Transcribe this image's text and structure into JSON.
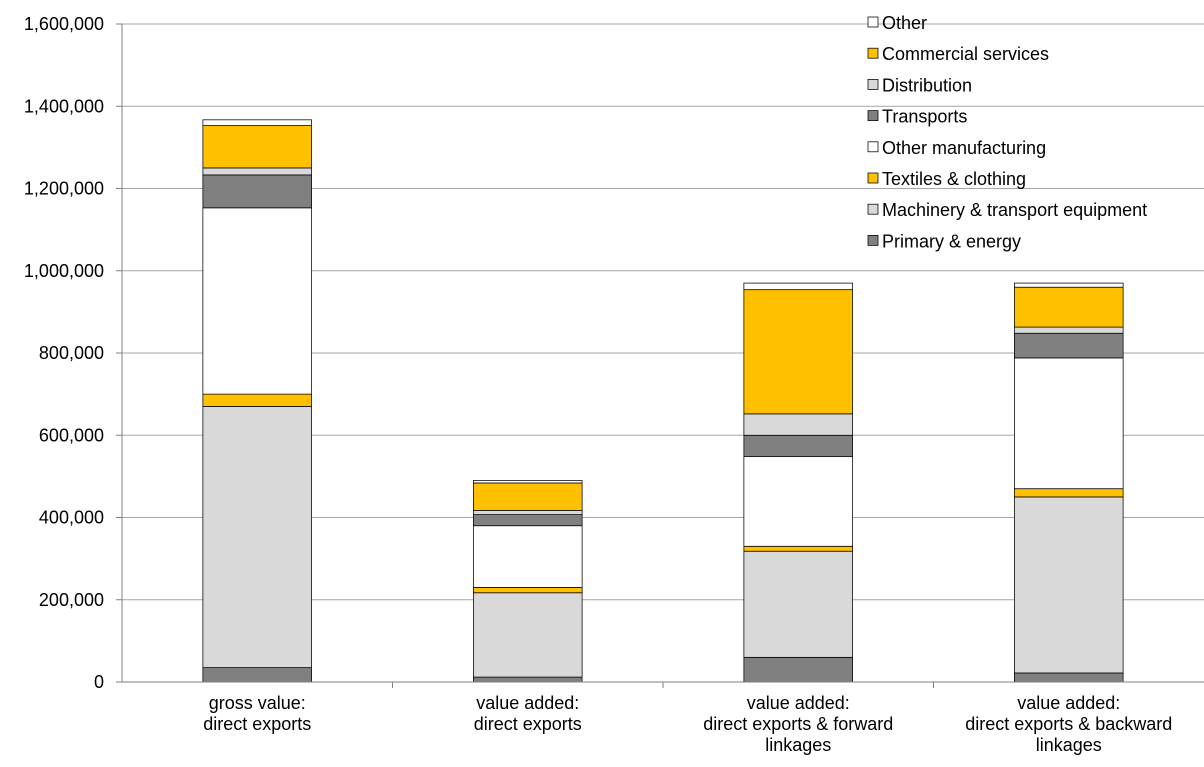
{
  "chart_data": {
    "type": "bar",
    "stacked": true,
    "title": "",
    "xlabel": "",
    "ylabel": "",
    "ylim": [
      0,
      1600000
    ],
    "ytick_labels": [
      "0",
      "200,000",
      "400,000",
      "600,000",
      "800,000",
      "1,000,000",
      "1,200,000",
      "1,400,000",
      "1,600,000"
    ],
    "grid": true,
    "legend_position": "top-right",
    "categories": [
      [
        "gross value:",
        "direct exports"
      ],
      [
        "value added:",
        "direct exports"
      ],
      [
        "value added:",
        "direct exports & forward",
        "linkages"
      ],
      [
        "value added:",
        "direct exports & backward",
        "linkages"
      ]
    ],
    "series": [
      {
        "name": "Primary & energy",
        "color": "#808080",
        "values": [
          35000,
          12000,
          60000,
          22000
        ]
      },
      {
        "name": "Machinery & transport equipment",
        "color": "#d9d9d9",
        "values": [
          635000,
          205000,
          258000,
          428000
        ]
      },
      {
        "name": "Textiles & clothing",
        "color": "#ffc000",
        "values": [
          30000,
          13000,
          12000,
          20000
        ]
      },
      {
        "name": "Other manufacturing",
        "color": "#ffffff",
        "values": [
          453000,
          150000,
          218000,
          318000
        ]
      },
      {
        "name": "Transports",
        "color": "#808080",
        "values": [
          80000,
          27000,
          52000,
          60000
        ]
      },
      {
        "name": "Distribution",
        "color": "#d9d9d9",
        "values": [
          17000,
          10000,
          52000,
          15000
        ]
      },
      {
        "name": "Commercial services",
        "color": "#ffc000",
        "values": [
          103000,
          67000,
          302000,
          97000
        ]
      },
      {
        "name": "Other",
        "color": "#ffffff",
        "values": [
          14000,
          6000,
          16000,
          10000
        ]
      }
    ]
  }
}
